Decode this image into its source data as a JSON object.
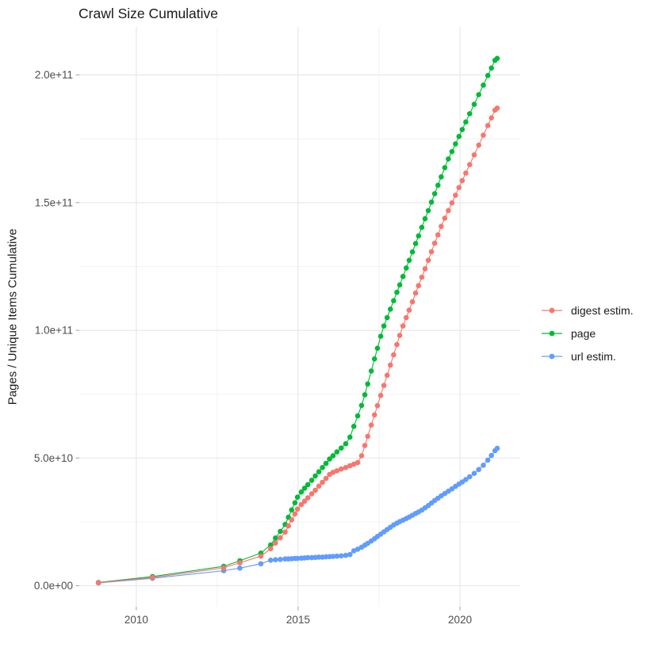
{
  "title": "Crawl Size Cumulative",
  "y_axis_title": "Pages / Unique Items Cumulative",
  "legend": {
    "items": [
      {
        "label": "digest estim."
      },
      {
        "label": "page"
      },
      {
        "label": "url estim."
      }
    ]
  },
  "chart_data": {
    "type": "scatter",
    "title": "Crawl Size Cumulative",
    "xlabel": "",
    "ylabel": "Pages / Unique Items Cumulative",
    "legend_position": "right",
    "grid": true,
    "value_unit": "1e9 pages (points stored as [year, billions])",
    "xlim": [
      2008.24,
      2021.86
    ],
    "ylim_e9": [
      -8.2,
      218.8
    ],
    "x_ticks": [
      {
        "value": 2010,
        "label": "2010"
      },
      {
        "value": 2015,
        "label": "2015"
      },
      {
        "value": 2020,
        "label": "2020"
      }
    ],
    "x_minor": [
      2012.5,
      2017.5
    ],
    "y_ticks": [
      {
        "value_e9": 0,
        "label": "0.0e+00"
      },
      {
        "value_e9": 50,
        "label": "5.0e+10"
      },
      {
        "value_e9": 100,
        "label": "1.0e+11"
      },
      {
        "value_e9": 150,
        "label": "1.5e+11"
      },
      {
        "value_e9": 200,
        "label": "2.0e+11"
      }
    ],
    "y_minor_e9": [
      25,
      75,
      125,
      175
    ],
    "series": [
      {
        "name": "digest estim.",
        "color": "#F8766D",
        "points": [
          [
            2008.83,
            1.2
          ],
          [
            2010.5,
            3.2
          ],
          [
            2012.7,
            7.0
          ],
          [
            2013.2,
            9.0
          ],
          [
            2013.85,
            11.6
          ],
          [
            2014.15,
            14.5
          ],
          [
            2014.3,
            16.7
          ],
          [
            2014.45,
            18.8
          ],
          [
            2014.6,
            21.0
          ],
          [
            2014.7,
            23.4
          ],
          [
            2014.8,
            25.8
          ],
          [
            2014.9,
            28.1
          ],
          [
            2014.98,
            30.0
          ],
          [
            2015.1,
            31.8
          ],
          [
            2015.2,
            33.1
          ],
          [
            2015.3,
            34.4
          ],
          [
            2015.42,
            36.0
          ],
          [
            2015.53,
            37.4
          ],
          [
            2015.64,
            39.0
          ],
          [
            2015.75,
            40.5
          ],
          [
            2015.86,
            42.0
          ],
          [
            2015.97,
            43.6
          ],
          [
            2016.08,
            44.4
          ],
          [
            2016.2,
            45.0
          ],
          [
            2016.33,
            45.7
          ],
          [
            2016.47,
            46.3
          ],
          [
            2016.6,
            47.0
          ],
          [
            2016.72,
            47.6
          ],
          [
            2016.84,
            48.2
          ],
          [
            2016.96,
            50.9
          ],
          [
            2017.06,
            54.9
          ],
          [
            2017.15,
            58.5
          ],
          [
            2017.26,
            62.9
          ],
          [
            2017.36,
            66.9
          ],
          [
            2017.45,
            70.5
          ],
          [
            2017.55,
            74.5
          ],
          [
            2017.65,
            78.4
          ],
          [
            2017.75,
            82.4
          ],
          [
            2017.85,
            86.4
          ],
          [
            2017.95,
            90.4
          ],
          [
            2018.05,
            94.4
          ],
          [
            2018.14,
            98.0
          ],
          [
            2018.24,
            101.7
          ],
          [
            2018.34,
            105.0
          ],
          [
            2018.43,
            107.9
          ],
          [
            2018.53,
            111.2
          ],
          [
            2018.63,
            114.6
          ],
          [
            2018.72,
            117.5
          ],
          [
            2018.82,
            120.8
          ],
          [
            2018.92,
            124.1
          ],
          [
            2019.02,
            127.4
          ],
          [
            2019.12,
            130.8
          ],
          [
            2019.22,
            134.1
          ],
          [
            2019.32,
            137.4
          ],
          [
            2019.42,
            140.7
          ],
          [
            2019.53,
            143.9
          ],
          [
            2019.64,
            146.9
          ],
          [
            2019.75,
            149.9
          ],
          [
            2019.86,
            152.9
          ],
          [
            2019.97,
            155.9
          ],
          [
            2020.07,
            158.6
          ],
          [
            2020.18,
            161.6
          ],
          [
            2020.3,
            164.9
          ],
          [
            2020.44,
            168.7
          ],
          [
            2020.58,
            172.5
          ],
          [
            2020.72,
            176.4
          ],
          [
            2020.86,
            180.2
          ],
          [
            2020.97,
            183.2
          ],
          [
            2021.08,
            186.2
          ],
          [
            2021.15,
            187.0
          ]
        ]
      },
      {
        "name": "page",
        "color": "#00BA38",
        "points": [
          [
            2008.83,
            1.3
          ],
          [
            2010.5,
            3.6
          ],
          [
            2012.7,
            7.6
          ],
          [
            2013.2,
            9.8
          ],
          [
            2013.85,
            12.8
          ],
          [
            2014.15,
            16.0
          ],
          [
            2014.3,
            18.7
          ],
          [
            2014.45,
            21.3
          ],
          [
            2014.6,
            24.0
          ],
          [
            2014.7,
            26.8
          ],
          [
            2014.8,
            29.7
          ],
          [
            2014.9,
            32.5
          ],
          [
            2014.98,
            34.7
          ],
          [
            2015.1,
            36.7
          ],
          [
            2015.2,
            38.2
          ],
          [
            2015.3,
            39.6
          ],
          [
            2015.42,
            41.3
          ],
          [
            2015.53,
            43.0
          ],
          [
            2015.64,
            44.6
          ],
          [
            2015.75,
            46.3
          ],
          [
            2015.86,
            47.9
          ],
          [
            2015.97,
            49.6
          ],
          [
            2016.08,
            50.9
          ],
          [
            2016.2,
            52.4
          ],
          [
            2016.33,
            53.9
          ],
          [
            2016.47,
            55.6
          ],
          [
            2016.6,
            58.2
          ],
          [
            2016.72,
            62.4
          ],
          [
            2016.84,
            66.5
          ],
          [
            2016.96,
            70.6
          ],
          [
            2017.06,
            74.8
          ],
          [
            2017.15,
            79.0
          ],
          [
            2017.26,
            84.1
          ],
          [
            2017.36,
            88.8
          ],
          [
            2017.45,
            93.0
          ],
          [
            2017.55,
            97.7
          ],
          [
            2017.65,
            101.7
          ],
          [
            2017.75,
            105.0
          ],
          [
            2017.85,
            108.3
          ],
          [
            2017.95,
            111.6
          ],
          [
            2018.05,
            114.9
          ],
          [
            2018.14,
            117.8
          ],
          [
            2018.24,
            121.1
          ],
          [
            2018.34,
            124.4
          ],
          [
            2018.43,
            127.4
          ],
          [
            2018.53,
            130.7
          ],
          [
            2018.63,
            134.0
          ],
          [
            2018.72,
            137.0
          ],
          [
            2018.82,
            140.3
          ],
          [
            2018.92,
            143.7
          ],
          [
            2019.02,
            146.9
          ],
          [
            2019.12,
            150.2
          ],
          [
            2019.22,
            153.5
          ],
          [
            2019.32,
            156.8
          ],
          [
            2019.42,
            160.1
          ],
          [
            2019.53,
            163.7
          ],
          [
            2019.64,
            167.1
          ],
          [
            2019.75,
            170.0
          ],
          [
            2019.86,
            173.0
          ],
          [
            2019.97,
            175.9
          ],
          [
            2020.07,
            178.6
          ],
          [
            2020.18,
            181.6
          ],
          [
            2020.3,
            184.8
          ],
          [
            2020.44,
            188.5
          ],
          [
            2020.58,
            192.3
          ],
          [
            2020.72,
            196.0
          ],
          [
            2020.86,
            199.8
          ],
          [
            2020.97,
            202.7
          ],
          [
            2021.08,
            205.7
          ],
          [
            2021.15,
            206.5
          ]
        ]
      },
      {
        "name": "url estim.",
        "color": "#619CFF",
        "points": [
          [
            2008.83,
            1.1
          ],
          [
            2010.5,
            2.9
          ],
          [
            2012.7,
            5.9
          ],
          [
            2013.2,
            6.9
          ],
          [
            2013.85,
            8.6
          ],
          [
            2014.15,
            10.0
          ],
          [
            2014.3,
            10.2
          ],
          [
            2014.45,
            10.3
          ],
          [
            2014.6,
            10.5
          ],
          [
            2014.7,
            10.5
          ],
          [
            2014.8,
            10.6
          ],
          [
            2014.9,
            10.7
          ],
          [
            2014.98,
            10.7
          ],
          [
            2015.1,
            10.8
          ],
          [
            2015.2,
            10.9
          ],
          [
            2015.3,
            11.0
          ],
          [
            2015.42,
            11.0
          ],
          [
            2015.53,
            11.1
          ],
          [
            2015.64,
            11.2
          ],
          [
            2015.75,
            11.2
          ],
          [
            2015.86,
            11.3
          ],
          [
            2015.97,
            11.4
          ],
          [
            2016.08,
            11.5
          ],
          [
            2016.2,
            11.6
          ],
          [
            2016.33,
            11.7
          ],
          [
            2016.47,
            11.9
          ],
          [
            2016.6,
            12.2
          ],
          [
            2016.72,
            13.7
          ],
          [
            2016.84,
            14.3
          ],
          [
            2016.96,
            15.1
          ],
          [
            2017.06,
            15.9
          ],
          [
            2017.15,
            16.6
          ],
          [
            2017.26,
            17.5
          ],
          [
            2017.36,
            18.4
          ],
          [
            2017.45,
            19.3
          ],
          [
            2017.55,
            20.2
          ],
          [
            2017.65,
            21.1
          ],
          [
            2017.75,
            22.0
          ],
          [
            2017.85,
            22.9
          ],
          [
            2017.95,
            23.8
          ],
          [
            2018.05,
            24.5
          ],
          [
            2018.14,
            25.1
          ],
          [
            2018.24,
            25.7
          ],
          [
            2018.34,
            26.3
          ],
          [
            2018.43,
            26.9
          ],
          [
            2018.53,
            27.6
          ],
          [
            2018.63,
            28.3
          ],
          [
            2018.72,
            28.9
          ],
          [
            2018.82,
            29.6
          ],
          [
            2018.92,
            30.5
          ],
          [
            2019.02,
            31.4
          ],
          [
            2019.12,
            32.4
          ],
          [
            2019.22,
            33.4
          ],
          [
            2019.32,
            34.3
          ],
          [
            2019.42,
            35.2
          ],
          [
            2019.53,
            36.1
          ],
          [
            2019.64,
            37.0
          ],
          [
            2019.75,
            37.9
          ],
          [
            2019.86,
            38.9
          ],
          [
            2019.97,
            39.8
          ],
          [
            2020.07,
            40.6
          ],
          [
            2020.18,
            41.6
          ],
          [
            2020.3,
            42.7
          ],
          [
            2020.44,
            44.0
          ],
          [
            2020.58,
            45.5
          ],
          [
            2020.72,
            47.2
          ],
          [
            2020.86,
            49.2
          ],
          [
            2020.97,
            51.0
          ],
          [
            2021.08,
            52.9
          ],
          [
            2021.15,
            53.8
          ]
        ]
      }
    ]
  }
}
